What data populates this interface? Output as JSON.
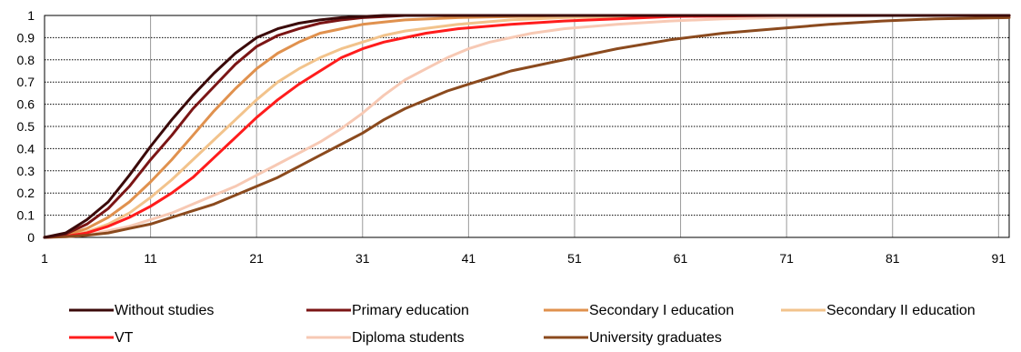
{
  "chart_data": {
    "type": "line",
    "title": "",
    "xlabel": "",
    "ylabel": "",
    "xlim": [
      1,
      92
    ],
    "ylim": [
      0,
      1
    ],
    "x_ticks": [
      "1",
      "11",
      "21",
      "31",
      "41",
      "51",
      "61",
      "71",
      "81",
      "91"
    ],
    "y_ticks": [
      "0",
      "0.1",
      "0.2",
      "0.3",
      "0.4",
      "0.5",
      "0.6",
      "0.7",
      "0.8",
      "0.9",
      "1"
    ],
    "grid": "horizontal dotted and vertical solid",
    "legend_position": "bottom",
    "series": [
      {
        "name": "Without studies",
        "color": "#3b0a0a",
        "x": [
          1,
          3,
          5,
          7,
          9,
          11,
          13,
          15,
          17,
          19,
          21,
          23,
          25,
          27,
          29,
          31,
          33,
          35,
          40,
          50,
          60,
          70,
          80,
          92
        ],
        "values": [
          0,
          0.02,
          0.08,
          0.16,
          0.28,
          0.41,
          0.53,
          0.64,
          0.74,
          0.83,
          0.9,
          0.94,
          0.965,
          0.98,
          0.99,
          0.995,
          1,
          1,
          1,
          1,
          1,
          1,
          1,
          1
        ]
      },
      {
        "name": "Primary education",
        "color": "#7b1515",
        "x": [
          1,
          3,
          5,
          7,
          9,
          11,
          13,
          15,
          17,
          19,
          21,
          23,
          25,
          27,
          29,
          31,
          33,
          35,
          40,
          50,
          60,
          70,
          80,
          92
        ],
        "values": [
          0,
          0.015,
          0.06,
          0.13,
          0.23,
          0.35,
          0.46,
          0.58,
          0.68,
          0.78,
          0.86,
          0.91,
          0.94,
          0.965,
          0.98,
          0.99,
          0.995,
          1,
          1,
          1,
          1,
          1,
          1,
          1
        ]
      },
      {
        "name": "Secondary I education",
        "color": "#e0914e",
        "x": [
          1,
          3,
          5,
          7,
          9,
          11,
          13,
          15,
          17,
          19,
          21,
          23,
          25,
          27,
          29,
          31,
          33,
          35,
          40,
          45,
          50,
          60,
          70,
          80,
          92
        ],
        "values": [
          0,
          0.01,
          0.04,
          0.09,
          0.16,
          0.25,
          0.35,
          0.46,
          0.57,
          0.67,
          0.76,
          0.83,
          0.88,
          0.92,
          0.94,
          0.96,
          0.97,
          0.98,
          0.99,
          0.995,
          1,
          1,
          1,
          1,
          1
        ]
      },
      {
        "name": "Secondary II education",
        "color": "#f2c38c",
        "x": [
          1,
          3,
          5,
          7,
          9,
          11,
          13,
          15,
          17,
          19,
          21,
          23,
          25,
          27,
          29,
          31,
          33,
          35,
          40,
          45,
          50,
          60,
          70,
          80,
          92
        ],
        "values": [
          0,
          0.005,
          0.025,
          0.06,
          0.11,
          0.18,
          0.26,
          0.35,
          0.44,
          0.53,
          0.62,
          0.7,
          0.76,
          0.81,
          0.85,
          0.88,
          0.91,
          0.93,
          0.96,
          0.98,
          0.99,
          1,
          1,
          1,
          1
        ]
      },
      {
        "name": "VT",
        "color": "#ff1c1c",
        "x": [
          1,
          3,
          5,
          7,
          9,
          11,
          13,
          15,
          17,
          19,
          21,
          23,
          25,
          27,
          29,
          31,
          33,
          35,
          37,
          40,
          45,
          50,
          55,
          60,
          70,
          80,
          92
        ],
        "values": [
          0,
          0.005,
          0.02,
          0.05,
          0.09,
          0.14,
          0.2,
          0.27,
          0.36,
          0.45,
          0.54,
          0.62,
          0.69,
          0.75,
          0.81,
          0.85,
          0.88,
          0.9,
          0.92,
          0.94,
          0.96,
          0.975,
          0.985,
          0.995,
          1,
          1,
          1
        ]
      },
      {
        "name": "Diploma students",
        "color": "#f7c9b4",
        "x": [
          1,
          3,
          5,
          7,
          9,
          11,
          13,
          15,
          17,
          19,
          21,
          23,
          25,
          27,
          29,
          31,
          33,
          35,
          37,
          39,
          41,
          43,
          45,
          47,
          50,
          55,
          60,
          65,
          70,
          80,
          92
        ],
        "values": [
          0,
          0.003,
          0.01,
          0.03,
          0.05,
          0.08,
          0.11,
          0.15,
          0.19,
          0.23,
          0.28,
          0.33,
          0.38,
          0.43,
          0.49,
          0.56,
          0.64,
          0.71,
          0.76,
          0.81,
          0.85,
          0.88,
          0.9,
          0.92,
          0.94,
          0.96,
          0.975,
          0.985,
          0.99,
          1,
          1
        ]
      },
      {
        "name": "University graduates",
        "color": "#8b4a1e",
        "x": [
          1,
          3,
          5,
          7,
          9,
          11,
          13,
          15,
          17,
          19,
          21,
          23,
          25,
          27,
          29,
          31,
          33,
          35,
          37,
          39,
          41,
          43,
          45,
          47,
          49,
          51,
          55,
          60,
          65,
          70,
          75,
          80,
          85,
          92
        ],
        "values": [
          0,
          0.003,
          0.01,
          0.02,
          0.04,
          0.06,
          0.09,
          0.12,
          0.15,
          0.19,
          0.23,
          0.27,
          0.32,
          0.37,
          0.42,
          0.47,
          0.53,
          0.58,
          0.62,
          0.66,
          0.69,
          0.72,
          0.75,
          0.77,
          0.79,
          0.81,
          0.85,
          0.89,
          0.92,
          0.94,
          0.96,
          0.975,
          0.985,
          0.99
        ]
      }
    ]
  }
}
